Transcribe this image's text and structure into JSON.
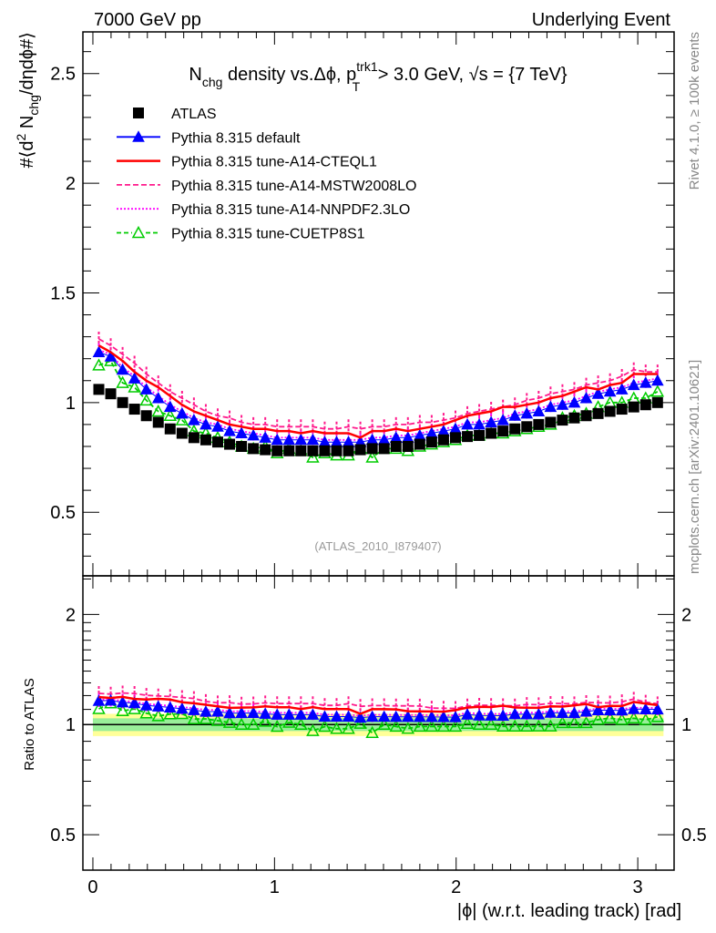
{
  "header": {
    "left": "7000 GeV pp",
    "right": "Underlying Event"
  },
  "side_text": {
    "rivet": "Rivet 4.1.0, ≥ 100k events",
    "mcplots": "mcplots.cern.ch [arXiv:2401.10621]"
  },
  "analysis_id": "(ATLAS_2010_I879407)",
  "chart_data": {
    "type": "scatter",
    "title": {
      "main": "N",
      "sub1": "chg",
      "mid": " density vs.Δϕ, p",
      "sup": "trk1",
      "sub2": "T",
      "tail": " > 3.0 GeV, √s = {7 TeV}"
    },
    "ylabel": {
      "a": "#⟨d",
      "sup": "2",
      "b": " N",
      "sub": "chg",
      "c": "/dηdϕ#⟩"
    },
    "ratio_ylabel": "Ratio to ATLAS",
    "xlabel": "|ϕ| (w.r.t. leading track) [rad]",
    "xlim": [
      -0.055,
      3.2
    ],
    "ylim": [
      0.21,
      2.69
    ],
    "ratio_ylim": [
      0.4,
      2.55
    ],
    "ratio_scale": "log",
    "xticks": [
      "0",
      "1",
      "2",
      "3"
    ],
    "yticks": [
      "0.5",
      "1",
      "1.5",
      "2",
      "2.5"
    ],
    "ratio_yticks": [
      "0.5",
      "1",
      "2"
    ],
    "ratio_band": {
      "inner": [
        0.96,
        1.04
      ],
      "outer": [
        0.93,
        1.07
      ]
    },
    "nbins": 48,
    "x_range": [
      0,
      3.14159
    ],
    "legend_position": "top-left",
    "series": [
      {
        "name": "ATLAS",
        "color": "#000000",
        "style": "square",
        "values": [
          1.06,
          1.04,
          1.0,
          0.97,
          0.94,
          0.91,
          0.88,
          0.86,
          0.84,
          0.83,
          0.82,
          0.81,
          0.8,
          0.79,
          0.785,
          0.78,
          0.78,
          0.78,
          0.78,
          0.78,
          0.78,
          0.78,
          0.785,
          0.79,
          0.79,
          0.8,
          0.8,
          0.81,
          0.82,
          0.83,
          0.84,
          0.845,
          0.85,
          0.86,
          0.87,
          0.88,
          0.89,
          0.9,
          0.91,
          0.92,
          0.93,
          0.94,
          0.95,
          0.96,
          0.97,
          0.98,
          0.99,
          1.0
        ]
      },
      {
        "name": "Pythia 8.315 default",
        "color": "#0000ff",
        "style": "line-triangle",
        "values": [
          1.23,
          1.21,
          1.15,
          1.11,
          1.06,
          1.02,
          0.98,
          0.95,
          0.92,
          0.9,
          0.89,
          0.87,
          0.86,
          0.85,
          0.84,
          0.83,
          0.83,
          0.83,
          0.83,
          0.82,
          0.82,
          0.82,
          0.82,
          0.83,
          0.83,
          0.84,
          0.84,
          0.85,
          0.86,
          0.87,
          0.88,
          0.9,
          0.9,
          0.91,
          0.92,
          0.94,
          0.95,
          0.96,
          0.98,
          0.99,
          1.0,
          1.02,
          1.04,
          1.05,
          1.06,
          1.08,
          1.09,
          1.1
        ]
      },
      {
        "name": "Pythia 8.315 tune-A14-CTEQL1",
        "color": "#ff0000",
        "style": "line-solid",
        "values": [
          1.26,
          1.23,
          1.19,
          1.14,
          1.1,
          1.07,
          1.03,
          0.99,
          0.96,
          0.94,
          0.92,
          0.9,
          0.89,
          0.88,
          0.88,
          0.87,
          0.87,
          0.86,
          0.87,
          0.86,
          0.86,
          0.86,
          0.84,
          0.87,
          0.87,
          0.88,
          0.87,
          0.88,
          0.89,
          0.9,
          0.92,
          0.94,
          0.95,
          0.96,
          0.98,
          0.98,
          0.99,
          1.0,
          1.02,
          1.03,
          1.05,
          1.07,
          1.06,
          1.08,
          1.09,
          1.13,
          1.13,
          1.13
        ]
      },
      {
        "name": "Pythia 8.315 tune-A14-MSTW2008LO",
        "color": "#ff1a8c",
        "style": "line-dashed",
        "values": [
          1.29,
          1.26,
          1.22,
          1.18,
          1.13,
          1.09,
          1.05,
          1.02,
          0.99,
          0.96,
          0.94,
          0.93,
          0.91,
          0.9,
          0.9,
          0.89,
          0.89,
          0.89,
          0.89,
          0.88,
          0.88,
          0.89,
          0.88,
          0.89,
          0.89,
          0.9,
          0.9,
          0.91,
          0.91,
          0.92,
          0.93,
          0.95,
          0.96,
          0.97,
          0.98,
          0.99,
          1.01,
          1.02,
          1.04,
          1.05,
          1.06,
          1.08,
          1.09,
          1.1,
          1.12,
          1.15,
          1.14,
          1.14
        ]
      },
      {
        "name": "Pythia 8.315 tune-A14-NNPDF2.3LO",
        "color": "#ff00ff",
        "style": "line-dotted",
        "values": [
          1.24,
          1.22,
          1.16,
          1.12,
          1.07,
          1.03,
          0.99,
          0.96,
          0.93,
          0.91,
          0.9,
          0.88,
          0.87,
          0.86,
          0.85,
          0.84,
          0.84,
          0.84,
          0.84,
          0.83,
          0.83,
          0.83,
          0.83,
          0.84,
          0.84,
          0.85,
          0.85,
          0.86,
          0.87,
          0.88,
          0.89,
          0.91,
          0.91,
          0.92,
          0.93,
          0.95,
          0.96,
          0.97,
          0.99,
          1.0,
          1.01,
          1.03,
          1.05,
          1.06,
          1.07,
          1.09,
          1.1,
          1.11
        ]
      },
      {
        "name": "Pythia 8.315 tune-CUETP8S1",
        "color": "#00cc00",
        "style": "dashed-open-triangle",
        "values": [
          1.17,
          1.19,
          1.09,
          1.07,
          1.01,
          0.96,
          0.94,
          0.92,
          0.87,
          0.86,
          0.84,
          0.82,
          0.8,
          0.79,
          0.8,
          0.77,
          0.79,
          0.78,
          0.75,
          0.77,
          0.76,
          0.76,
          0.79,
          0.75,
          0.79,
          0.79,
          0.78,
          0.8,
          0.81,
          0.82,
          0.83,
          0.85,
          0.85,
          0.86,
          0.86,
          0.87,
          0.88,
          0.89,
          0.9,
          0.93,
          0.94,
          0.95,
          0.98,
          1.0,
          1.0,
          1.02,
          1.02,
          1.05
        ]
      }
    ]
  }
}
